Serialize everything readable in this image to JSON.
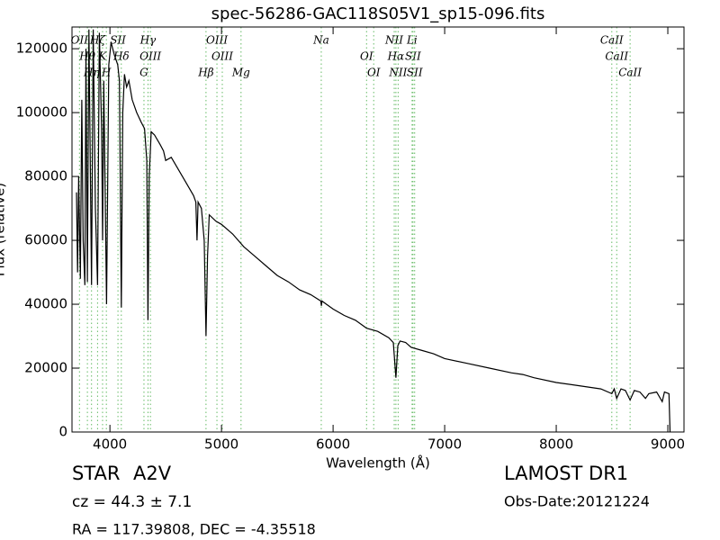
{
  "chart_data": {
    "type": "line",
    "title": "spec-56286-GAC118S05V1_sp15-096.fits",
    "xlabel": "Wavelength (Å)",
    "ylabel": "Flux (relative)",
    "xlim": [
      3660,
      9145
    ],
    "ylim": [
      0,
      126800
    ],
    "xticks": [
      4000,
      5000,
      6000,
      7000,
      8000,
      9000
    ],
    "yticks": [
      0,
      20000,
      40000,
      60000,
      80000,
      100000,
      120000
    ],
    "x": [
      3700,
      3710,
      3720,
      3735,
      3748,
      3760,
      3775,
      3785,
      3798,
      3812,
      3835,
      3850,
      3870,
      3889,
      3905,
      3925,
      3934,
      3945,
      3970,
      3990,
      4010,
      4040,
      4070,
      4085,
      4102,
      4115,
      4130,
      4150,
      4170,
      4200,
      4240,
      4280,
      4310,
      4330,
      4341,
      4352,
      4370,
      4400,
      4450,
      4480,
      4500,
      4550,
      4600,
      4650,
      4700,
      4750,
      4770,
      4780,
      4790,
      4820,
      4845,
      4861,
      4875,
      4890,
      4950,
      5000,
      5100,
      5200,
      5300,
      5400,
      5500,
      5600,
      5700,
      5800,
      5890,
      5895,
      5900,
      6000,
      6100,
      6200,
      6280,
      6300,
      6400,
      6500,
      6540,
      6563,
      6580,
      6600,
      6650,
      6700,
      6800,
      6900,
      7000,
      7200,
      7400,
      7600,
      7700,
      7800,
      8000,
      8200,
      8400,
      8498,
      8520,
      8542,
      8580,
      8620,
      8662,
      8700,
      8750,
      8800,
      8830,
      8900,
      8950,
      8970,
      9010,
      9020
    ],
    "series": [
      {
        "color": "#000000",
        "values": [
          75000,
          50000,
          80000,
          48000,
          104000,
          60000,
          46000,
          120000,
          47000,
          126000,
          46000,
          126000,
          70000,
          46000,
          125000,
          95000,
          60000,
          110000,
          40000,
          115000,
          122000,
          118000,
          115000,
          110000,
          39000,
          100000,
          112000,
          108000,
          110000,
          104000,
          100000,
          97000,
          95000,
          85000,
          35000,
          80000,
          94000,
          93000,
          90000,
          88000,
          85000,
          86000,
          83000,
          80000,
          77000,
          74000,
          72000,
          60000,
          72000,
          70000,
          60000,
          30000,
          55000,
          68000,
          66000,
          65000,
          62000,
          58000,
          55000,
          52000,
          49000,
          47000,
          44500,
          43000,
          41000,
          39500,
          41000,
          38500,
          36500,
          35000,
          33000,
          32500,
          31500,
          29500,
          28000,
          17000,
          27000,
          28500,
          28000,
          26500,
          25500,
          24500,
          23000,
          21500,
          20000,
          18500,
          18000,
          17000,
          15500,
          14500,
          13500,
          12000,
          13500,
          10500,
          13500,
          13000,
          10000,
          13000,
          12500,
          10500,
          12000,
          12500,
          9500,
          12500,
          12000,
          0
        ]
      }
    ],
    "marker_color": "#66bb66",
    "line_markers": [
      {
        "label": "OII",
        "x": 3727
      },
      {
        "label": "Hθ",
        "x": 3798
      },
      {
        "label": "Hη",
        "x": 3835
      },
      {
        "label": "Hζ",
        "x": 3889
      },
      {
        "label": "K",
        "x": 3934
      },
      {
        "label": "H",
        "x": 3968
      },
      {
        "label": "SII",
        "x": 4072
      },
      {
        "label": "Hδ",
        "x": 4102
      },
      {
        "label": "G",
        "x": 4305
      },
      {
        "label": "Hγ",
        "x": 4341
      },
      {
        "label": "OIII",
        "x": 4363
      },
      {
        "label": "Hβ",
        "x": 4861
      },
      {
        "label": "OIII",
        "x": 4959
      },
      {
        "label": "OIII",
        "x": 5007
      },
      {
        "label": "Mg",
        "x": 5175
      },
      {
        "label": "Na",
        "x": 5894
      },
      {
        "label": "OI",
        "x": 6300
      },
      {
        "label": "OI",
        "x": 6364
      },
      {
        "label": "NII",
        "x": 6548
      },
      {
        "label": "Hα",
        "x": 6563
      },
      {
        "label": "NII",
        "x": 6583
      },
      {
        "label": "Li",
        "x": 6708
      },
      {
        "label": "SII",
        "x": 6716
      },
      {
        "label": "SII",
        "x": 6731
      },
      {
        "label": "CaII",
        "x": 8498
      },
      {
        "label": "CaII",
        "x": 8542
      },
      {
        "label": "CaII",
        "x": 8662
      }
    ],
    "object_class": "STAR",
    "subclass": "A2V",
    "redshift": "cz = 44.3 ± 7.1",
    "coordinates": "RA = 117.39808, DEC = -4.35518",
    "survey": "LAMOST DR1",
    "obs_date": "Obs-Date:20121224"
  }
}
